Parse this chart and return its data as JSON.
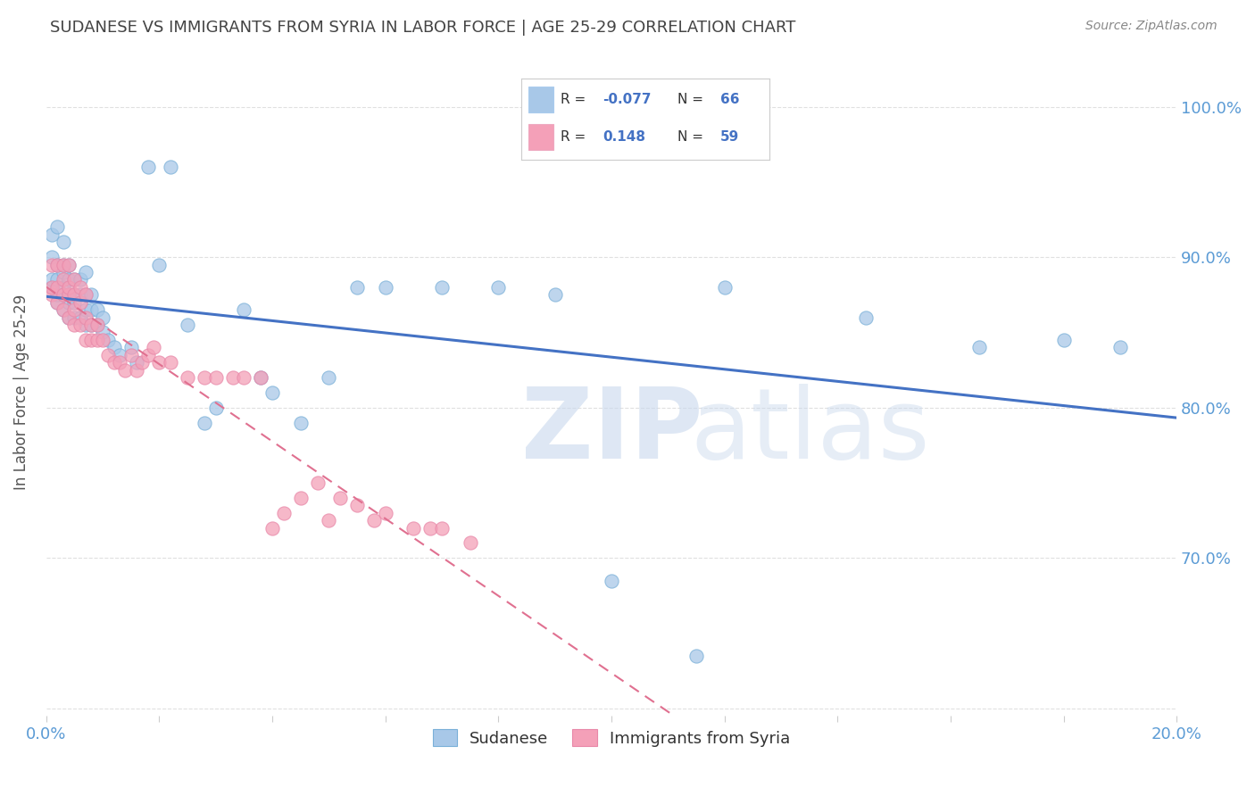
{
  "title": "SUDANESE VS IMMIGRANTS FROM SYRIA IN LABOR FORCE | AGE 25-29 CORRELATION CHART",
  "source": "Source: ZipAtlas.com",
  "ylabel": "In Labor Force | Age 25-29",
  "xlim": [
    0.0,
    0.2
  ],
  "ylim": [
    0.595,
    1.025
  ],
  "xticks": [
    0.0,
    0.02,
    0.04,
    0.06,
    0.08,
    0.1,
    0.12,
    0.14,
    0.16,
    0.18,
    0.2
  ],
  "xticklabels": [
    "0.0%",
    "",
    "",
    "",
    "",
    "",
    "",
    "",
    "",
    "",
    "20.0%"
  ],
  "yticks": [
    0.6,
    0.7,
    0.8,
    0.9,
    1.0
  ],
  "yticklabels": [
    "",
    "70.0%",
    "80.0%",
    "90.0%",
    "100.0%"
  ],
  "background_color": "#ffffff",
  "grid_color": "#e0e0e0",
  "title_color": "#444444",
  "axis_color": "#5b9bd5",
  "watermark_zip": "ZIP",
  "watermark_atlas": "atlas",
  "watermark_color": "#c8d8ed",
  "blue_color": "#a8c8e8",
  "pink_color": "#f4a0b8",
  "blue_line_color": "#4472c4",
  "pink_line_color": "#e07090",
  "blue_slope": -0.077,
  "blue_intercept": 0.878,
  "pink_slope": 0.148,
  "pink_intercept": 0.852,
  "sudanese_x": [
    0.001,
    0.001,
    0.001,
    0.001,
    0.002,
    0.002,
    0.002,
    0.002,
    0.002,
    0.003,
    0.003,
    0.003,
    0.003,
    0.003,
    0.003,
    0.004,
    0.004,
    0.004,
    0.004,
    0.004,
    0.005,
    0.005,
    0.005,
    0.005,
    0.006,
    0.006,
    0.006,
    0.007,
    0.007,
    0.007,
    0.007,
    0.008,
    0.008,
    0.008,
    0.009,
    0.009,
    0.01,
    0.01,
    0.011,
    0.012,
    0.013,
    0.015,
    0.016,
    0.018,
    0.02,
    0.022,
    0.025,
    0.028,
    0.03,
    0.035,
    0.038,
    0.04,
    0.045,
    0.05,
    0.055,
    0.06,
    0.07,
    0.08,
    0.09,
    0.1,
    0.115,
    0.12,
    0.145,
    0.165,
    0.18,
    0.19
  ],
  "sudanese_y": [
    0.88,
    0.885,
    0.9,
    0.915,
    0.87,
    0.875,
    0.885,
    0.895,
    0.92,
    0.865,
    0.875,
    0.88,
    0.89,
    0.895,
    0.91,
    0.86,
    0.87,
    0.875,
    0.885,
    0.895,
    0.86,
    0.87,
    0.875,
    0.885,
    0.86,
    0.875,
    0.885,
    0.855,
    0.865,
    0.875,
    0.89,
    0.855,
    0.865,
    0.875,
    0.855,
    0.865,
    0.85,
    0.86,
    0.845,
    0.84,
    0.835,
    0.84,
    0.83,
    0.96,
    0.895,
    0.96,
    0.855,
    0.79,
    0.8,
    0.865,
    0.82,
    0.81,
    0.79,
    0.82,
    0.88,
    0.88,
    0.88,
    0.88,
    0.875,
    0.685,
    0.635,
    0.88,
    0.86,
    0.84,
    0.845,
    0.84
  ],
  "syria_x": [
    0.001,
    0.001,
    0.001,
    0.002,
    0.002,
    0.002,
    0.003,
    0.003,
    0.003,
    0.003,
    0.004,
    0.004,
    0.004,
    0.004,
    0.005,
    0.005,
    0.005,
    0.005,
    0.006,
    0.006,
    0.006,
    0.007,
    0.007,
    0.007,
    0.008,
    0.008,
    0.009,
    0.009,
    0.01,
    0.011,
    0.012,
    0.013,
    0.014,
    0.015,
    0.016,
    0.017,
    0.018,
    0.019,
    0.02,
    0.022,
    0.025,
    0.028,
    0.03,
    0.033,
    0.035,
    0.038,
    0.04,
    0.042,
    0.045,
    0.048,
    0.05,
    0.052,
    0.055,
    0.058,
    0.06,
    0.065,
    0.068,
    0.07,
    0.075
  ],
  "syria_y": [
    0.875,
    0.88,
    0.895,
    0.87,
    0.88,
    0.895,
    0.865,
    0.875,
    0.885,
    0.895,
    0.86,
    0.875,
    0.88,
    0.895,
    0.855,
    0.865,
    0.875,
    0.885,
    0.855,
    0.87,
    0.88,
    0.845,
    0.86,
    0.875,
    0.845,
    0.855,
    0.845,
    0.855,
    0.845,
    0.835,
    0.83,
    0.83,
    0.825,
    0.835,
    0.825,
    0.83,
    0.835,
    0.84,
    0.83,
    0.83,
    0.82,
    0.82,
    0.82,
    0.82,
    0.82,
    0.82,
    0.72,
    0.73,
    0.74,
    0.75,
    0.725,
    0.74,
    0.735,
    0.725,
    0.73,
    0.72,
    0.72,
    0.72,
    0.71
  ]
}
